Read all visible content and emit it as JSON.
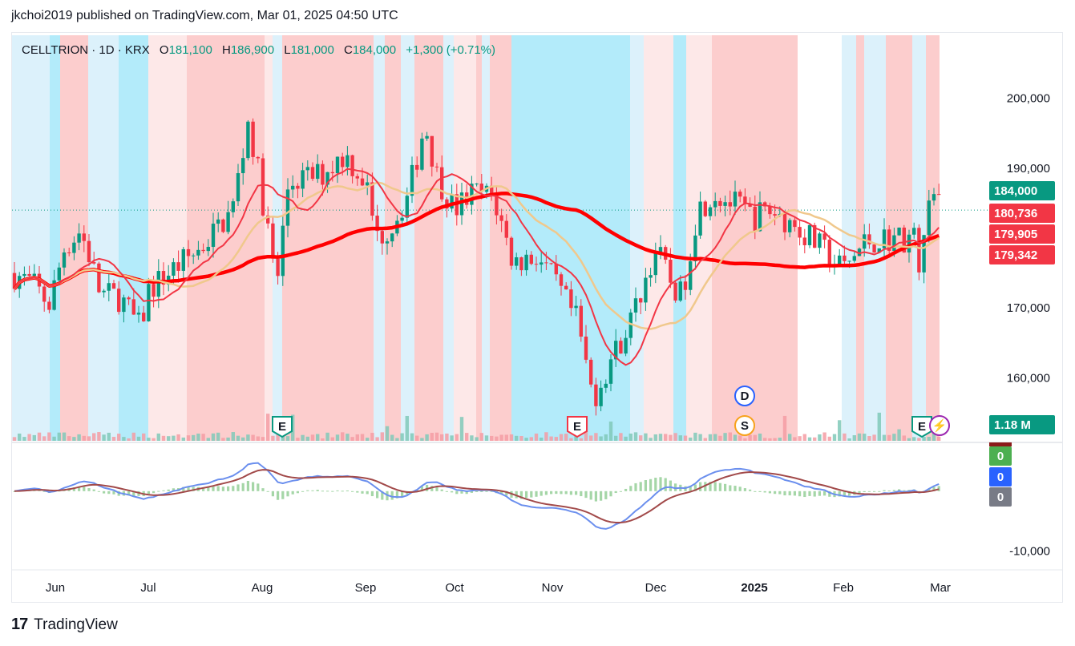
{
  "header": {
    "published_line": "jkchoi2019 published on TradingView.com, Mar 01, 2025 04:50 UTC"
  },
  "legend": {
    "symbol": "CELLTRION · 1D · KRX",
    "open_label": "O",
    "open": "181,100",
    "high_label": "H",
    "high": "186,900",
    "low_label": "L",
    "low": "181,000",
    "close_label": "C",
    "close": "184,000",
    "change": "+1,300 (+0.71%)"
  },
  "footer": {
    "brand": "TradingView",
    "brand_mark": "17"
  },
  "colors": {
    "up": "#089981",
    "down": "#f23645",
    "band_pink": "#fccdcd",
    "band_light_pink": "#fde8e8",
    "band_blue": "#b3ebfa",
    "band_light_blue": "#dcf1fb",
    "ma_fast": "#f23645",
    "ma_slow": "#ff0000",
    "ma_purple": "#8f7bef",
    "ma_tan": "#f0c88c",
    "macd_line": "#6b8fee",
    "signal_line": "#a24a4a",
    "hist_pos": "#a5d6a7",
    "hist_neg": "#a5d6a7"
  },
  "price_tags": [
    {
      "label": "184,000",
      "color": "#089981"
    },
    {
      "label": "180,736",
      "color": "#f23645"
    },
    {
      "label": "179,905",
      "color": "#f23645"
    },
    {
      "label": "179,342",
      "color": "#f23645"
    },
    {
      "label": "1.18 M",
      "color": "#089981"
    }
  ],
  "macd_tags": [
    {
      "label": "0",
      "color": "#4caf50"
    },
    {
      "label": "0",
      "color": "#2962ff"
    },
    {
      "label": "0",
      "color": "#787b86"
    }
  ],
  "event_markers": [
    {
      "label": "E",
      "color": "#089981",
      "month_index": 2
    },
    {
      "label": "E",
      "color": "#f23645",
      "month_index": 5
    },
    {
      "label": "D",
      "color": "#2962ff",
      "month_index": 7
    },
    {
      "label": "S",
      "color": "#f7a21b",
      "month_index": 7
    },
    {
      "label": "E",
      "color": "#089981",
      "month_index": 9
    },
    {
      "label": "⚡",
      "color": "#9c27b0",
      "month_index": 9
    }
  ],
  "chart_data": {
    "type": "candlestick",
    "symbol": "CELLTRION",
    "interval": "1D",
    "exchange": "KRX",
    "x_labels": [
      "Jun",
      "Jul",
      "Aug",
      "Sep",
      "Oct",
      "Nov",
      "Dec",
      "2025",
      "Feb",
      "Mar"
    ],
    "price_axis_ticks": [
      "200,000",
      "190,000",
      "170,000",
      "160,000"
    ],
    "price_axis_tick_values": [
      200000,
      190000,
      170000,
      160000
    ],
    "ylim": [
      151000,
      209000
    ],
    "macd_axis_ticks": [
      "-10,000"
    ],
    "macd_axis_tick_values": [
      -10000
    ],
    "macd_ylim": [
      -13000,
      8000
    ],
    "last": {
      "open": 181100,
      "high": 186900,
      "low": 181000,
      "close": 184000,
      "change": 1300,
      "change_pct": 0.71
    },
    "moving_averages": [
      {
        "value": 180736
      },
      {
        "value": 179905
      },
      {
        "value": 179342
      }
    ],
    "volume_last": "1.18 M",
    "close_series_monthly_approx": [
      {
        "x": "May-end",
        "close": 175000
      },
      {
        "x": "Jun",
        "close": 180000
      },
      {
        "x": "Jul",
        "close": 175000
      },
      {
        "x": "Aug",
        "close": 195000
      },
      {
        "x": "Sep",
        "close": 185000
      },
      {
        "x": "Oct",
        "close": 188000
      },
      {
        "x": "Nov",
        "close": 160000
      },
      {
        "x": "Dec",
        "close": 176000
      },
      {
        "x": "2025",
        "close": 182000
      },
      {
        "x": "Feb",
        "close": 180000
      },
      {
        "x": "Mar",
        "close": 184000
      }
    ],
    "grid": false
  }
}
